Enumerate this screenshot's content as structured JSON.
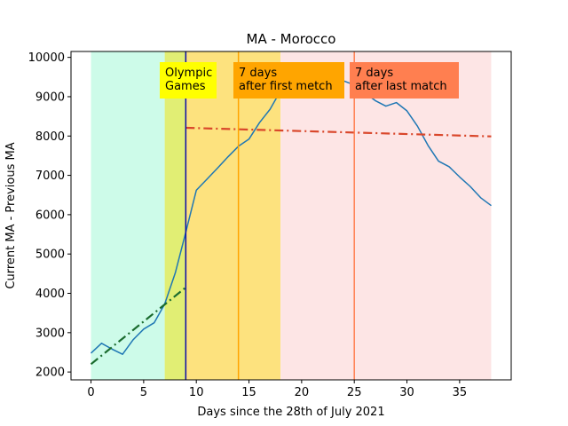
{
  "chart_data": {
    "type": "line",
    "title": "MA - Morocco",
    "xlabel": "Days since the 28th of July 2021",
    "ylabel": "Current MA - Previous MA",
    "xlim": [
      -1.9,
      39.9
    ],
    "ylim": [
      1800,
      10150
    ],
    "x_ticks": [
      0,
      5,
      10,
      15,
      20,
      25,
      30,
      35
    ],
    "y_ticks": [
      2000,
      3000,
      4000,
      5000,
      6000,
      7000,
      8000,
      9000,
      10000
    ],
    "grid": false,
    "series": [
      {
        "color": "#1f77b4",
        "style": "solid",
        "x": [
          0,
          1,
          2,
          3,
          4,
          5,
          6,
          7,
          8,
          9,
          10,
          11,
          12,
          13,
          14,
          15,
          16,
          17,
          18,
          19,
          20,
          21,
          22,
          23,
          24,
          25,
          26,
          27,
          28,
          29,
          30,
          31,
          32,
          33,
          34,
          35,
          36,
          37,
          38
        ],
        "y": [
          2480,
          2730,
          2580,
          2450,
          2820,
          3090,
          3250,
          3730,
          4520,
          5550,
          6620,
          6900,
          7180,
          7470,
          7740,
          7920,
          8340,
          8680,
          9150,
          9400,
          9550,
          9600,
          9580,
          9500,
          9400,
          9300,
          9100,
          8900,
          8760,
          8850,
          8640,
          8250,
          7760,
          7360,
          7220,
          6960,
          6720,
          6430,
          6230
        ]
      },
      {
        "color": "#1a6b2e",
        "style": "dashdot",
        "x": [
          0,
          9
        ],
        "y": [
          2200,
          4150
        ]
      },
      {
        "color": "#d9472b",
        "style": "dashdot",
        "x": [
          9,
          38
        ],
        "y": [
          8210,
          7990
        ]
      }
    ],
    "shaded_regions": [
      {
        "x0": 0,
        "x1": 7,
        "color": "#cdfbe9"
      },
      {
        "x0": 7,
        "x1": 9,
        "color": "#e1ee74"
      },
      {
        "x0": 9,
        "x1": 18,
        "color": "#fde27e"
      },
      {
        "x0": 18,
        "x1": 38,
        "color": "#fde5e5"
      }
    ],
    "vertical_lines": [
      {
        "x": 9,
        "color": "#0a0aa8"
      },
      {
        "x": 14,
        "color": "#ffa500"
      },
      {
        "x": 25,
        "color": "#ff7f50"
      }
    ],
    "annotations": [
      {
        "lines": [
          "Olympic",
          "Games"
        ],
        "bg": "#ffff00"
      },
      {
        "lines": [
          "7 days",
          "after first metch"
        ],
        "bg": "#ffa500"
      },
      {
        "lines": [
          "7 days",
          "after last match"
        ],
        "bg": "#ff7f50"
      }
    ]
  }
}
